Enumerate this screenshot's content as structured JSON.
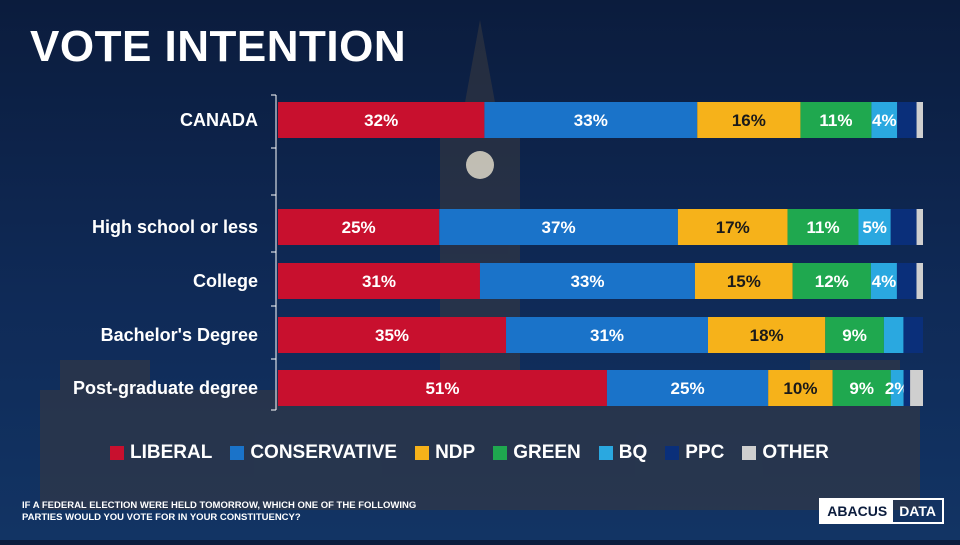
{
  "title": "VOTE INTENTION",
  "question": "IF A FEDERAL ELECTION WERE HELD TOMORROW, WHICH ONE OF THE FOLLOWING PARTIES WOULD YOU VOTE FOR IN YOUR CONSTITUENCY?",
  "logo": {
    "part1": "ABACUS",
    "part2": "DATA"
  },
  "chart_data": {
    "type": "bar",
    "orientation": "horizontal",
    "stacked": true,
    "title": "VOTE INTENTION",
    "categories": [
      "CANADA",
      "High school or less",
      "College",
      "Bachelor's Degree",
      "Post-graduate degree"
    ],
    "series": [
      {
        "name": "LIBERAL",
        "color": "#c8102e",
        "values": [
          32,
          25,
          31,
          35,
          51
        ],
        "labels": [
          "32%",
          "25%",
          "31%",
          "35%",
          "51%"
        ]
      },
      {
        "name": "CONSERVATIVE",
        "color": "#1a73c9",
        "values": [
          33,
          37,
          33,
          31,
          25
        ],
        "labels": [
          "33%",
          "37%",
          "33%",
          "31%",
          "25%"
        ]
      },
      {
        "name": "NDP",
        "color": "#f6b21a",
        "values": [
          16,
          17,
          15,
          18,
          10
        ],
        "labels": [
          "16%",
          "17%",
          "15%",
          "18%",
          "10%"
        ]
      },
      {
        "name": "GREEN",
        "color": "#1fa84f",
        "values": [
          11,
          11,
          12,
          9,
          9
        ],
        "labels": [
          "11%",
          "11%",
          "12%",
          "9%",
          "9%"
        ]
      },
      {
        "name": "BQ",
        "color": "#2aa8e0",
        "values": [
          4,
          5,
          4,
          3,
          2
        ],
        "labels": [
          "4%",
          "5%",
          "4%",
          "",
          "2%"
        ]
      },
      {
        "name": "PPC",
        "color": "#0a2f7a",
        "values": [
          3,
          4,
          3,
          3,
          1
        ],
        "labels": [
          "",
          "",
          "",
          "",
          ""
        ]
      },
      {
        "name": "OTHER",
        "color": "#cfcfcf",
        "values": [
          1,
          1,
          1,
          0,
          2
        ],
        "labels": [
          "",
          "",
          "",
          "",
          ""
        ]
      }
    ],
    "xlim": [
      0,
      100
    ],
    "legend": "bottom",
    "grid": false
  }
}
